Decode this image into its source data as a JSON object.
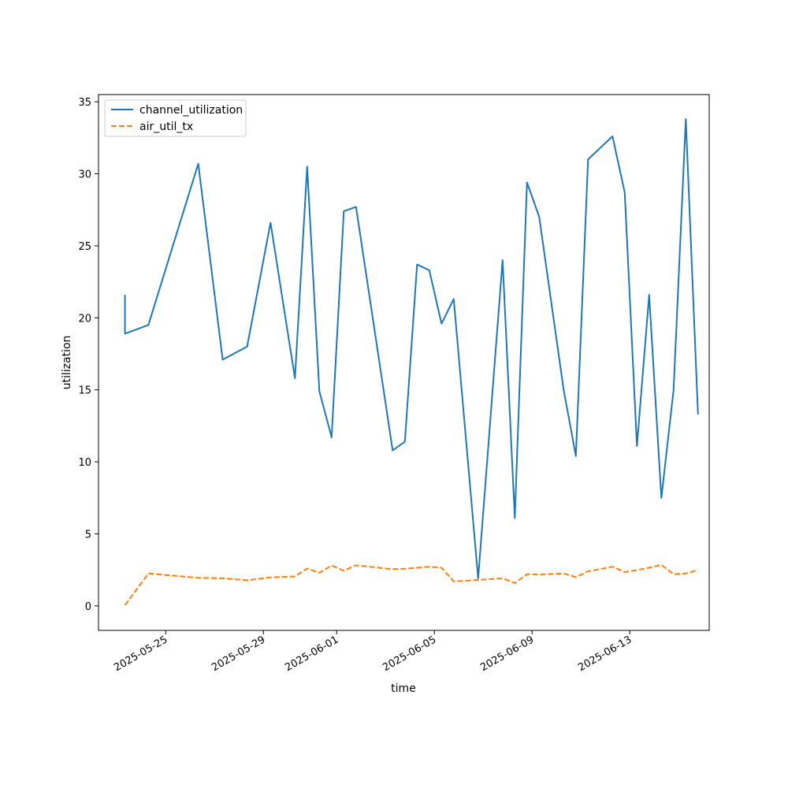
{
  "chart_data": {
    "type": "line",
    "title": "",
    "xlabel": "time",
    "ylabel": "utilization",
    "x_is_date": true,
    "x_ticks": [
      "2025-05-25",
      "2025-05-29",
      "2025-06-01",
      "2025-06-05",
      "2025-06-09",
      "2025-06-13"
    ],
    "y_ticks": [
      0,
      5,
      10,
      15,
      20,
      25,
      30,
      35
    ],
    "xlim": [
      "2025-05-22 06:00",
      "2025-06-16 06:00"
    ],
    "ylim": [
      -1.7,
      35.5
    ],
    "grid": false,
    "legend_position": "upper-left",
    "series": [
      {
        "name": "channel_utilization",
        "color": "#1f77b4",
        "style": "solid",
        "points": [
          {
            "x": "2025-05-23 08:00",
            "y": 21.6
          },
          {
            "x": "2025-05-23 08:00",
            "y": 18.9
          },
          {
            "x": "2025-05-24 07:00",
            "y": 19.5
          },
          {
            "x": "2025-05-26 08:00",
            "y": 30.7
          },
          {
            "x": "2025-05-27 08:00",
            "y": 17.1
          },
          {
            "x": "2025-05-28 08:00",
            "y": 18.0
          },
          {
            "x": "2025-05-29 07:00",
            "y": 26.6
          },
          {
            "x": "2025-05-30 07:00",
            "y": 15.8
          },
          {
            "x": "2025-05-30 19:00",
            "y": 30.5
          },
          {
            "x": "2025-05-31 07:00",
            "y": 14.9
          },
          {
            "x": "2025-05-31 19:00",
            "y": 11.7
          },
          {
            "x": "2025-06-01 07:00",
            "y": 27.4
          },
          {
            "x": "2025-06-01 19:00",
            "y": 27.7
          },
          {
            "x": "2025-06-03 07:00",
            "y": 10.8
          },
          {
            "x": "2025-06-03 19:00",
            "y": 11.4
          },
          {
            "x": "2025-06-04 07:00",
            "y": 23.7
          },
          {
            "x": "2025-06-04 19:00",
            "y": 23.3
          },
          {
            "x": "2025-06-05 07:00",
            "y": 19.6
          },
          {
            "x": "2025-06-05 19:00",
            "y": 21.3
          },
          {
            "x": "2025-06-06 19:00",
            "y": 1.9
          },
          {
            "x": "2025-06-07 19:00",
            "y": 24.0
          },
          {
            "x": "2025-06-08 07:00",
            "y": 6.1
          },
          {
            "x": "2025-06-08 19:00",
            "y": 29.4
          },
          {
            "x": "2025-06-09 07:00",
            "y": 27.0
          },
          {
            "x": "2025-06-10 07:00",
            "y": 15.0
          },
          {
            "x": "2025-06-10 19:00",
            "y": 10.4
          },
          {
            "x": "2025-06-11 07:00",
            "y": 31.0
          },
          {
            "x": "2025-06-12 07:00",
            "y": 32.6
          },
          {
            "x": "2025-06-12 19:00",
            "y": 28.7
          },
          {
            "x": "2025-06-13 07:00",
            "y": 11.1
          },
          {
            "x": "2025-06-13 19:00",
            "y": 21.6
          },
          {
            "x": "2025-06-14 07:00",
            "y": 7.5
          },
          {
            "x": "2025-06-14 19:00",
            "y": 15.0
          },
          {
            "x": "2025-06-15 07:00",
            "y": 33.8
          },
          {
            "x": "2025-06-15 19:00",
            "y": 13.3
          }
        ]
      },
      {
        "name": "air_util_tx",
        "color": "#ff7f0e",
        "style": "dashed",
        "points": [
          {
            "x": "2025-05-23 08:00",
            "y": 0.05
          },
          {
            "x": "2025-05-24 07:00",
            "y": 2.25
          },
          {
            "x": "2025-05-26 08:00",
            "y": 1.95
          },
          {
            "x": "2025-05-27 08:00",
            "y": 1.92
          },
          {
            "x": "2025-05-28 08:00",
            "y": 1.78
          },
          {
            "x": "2025-05-29 07:00",
            "y": 1.98
          },
          {
            "x": "2025-05-30 07:00",
            "y": 2.05
          },
          {
            "x": "2025-05-30 19:00",
            "y": 2.6
          },
          {
            "x": "2025-05-31 07:00",
            "y": 2.3
          },
          {
            "x": "2025-05-31 19:00",
            "y": 2.8
          },
          {
            "x": "2025-06-01 07:00",
            "y": 2.45
          },
          {
            "x": "2025-06-01 19:00",
            "y": 2.82
          },
          {
            "x": "2025-06-03 07:00",
            "y": 2.55
          },
          {
            "x": "2025-06-03 19:00",
            "y": 2.58
          },
          {
            "x": "2025-06-04 07:00",
            "y": 2.65
          },
          {
            "x": "2025-06-04 19:00",
            "y": 2.72
          },
          {
            "x": "2025-06-05 07:00",
            "y": 2.65
          },
          {
            "x": "2025-06-05 19:00",
            "y": 1.7
          },
          {
            "x": "2025-06-06 19:00",
            "y": 1.8
          },
          {
            "x": "2025-06-07 19:00",
            "y": 1.92
          },
          {
            "x": "2025-06-08 07:00",
            "y": 1.58
          },
          {
            "x": "2025-06-08 19:00",
            "y": 2.2
          },
          {
            "x": "2025-06-09 07:00",
            "y": 2.18
          },
          {
            "x": "2025-06-10 07:00",
            "y": 2.25
          },
          {
            "x": "2025-06-10 19:00",
            "y": 2.0
          },
          {
            "x": "2025-06-11 07:00",
            "y": 2.4
          },
          {
            "x": "2025-06-12 07:00",
            "y": 2.72
          },
          {
            "x": "2025-06-12 19:00",
            "y": 2.35
          },
          {
            "x": "2025-06-13 07:00",
            "y": 2.48
          },
          {
            "x": "2025-06-13 19:00",
            "y": 2.65
          },
          {
            "x": "2025-06-14 07:00",
            "y": 2.85
          },
          {
            "x": "2025-06-14 19:00",
            "y": 2.2
          },
          {
            "x": "2025-06-15 07:00",
            "y": 2.25
          },
          {
            "x": "2025-06-15 19:00",
            "y": 2.5
          }
        ]
      }
    ]
  }
}
